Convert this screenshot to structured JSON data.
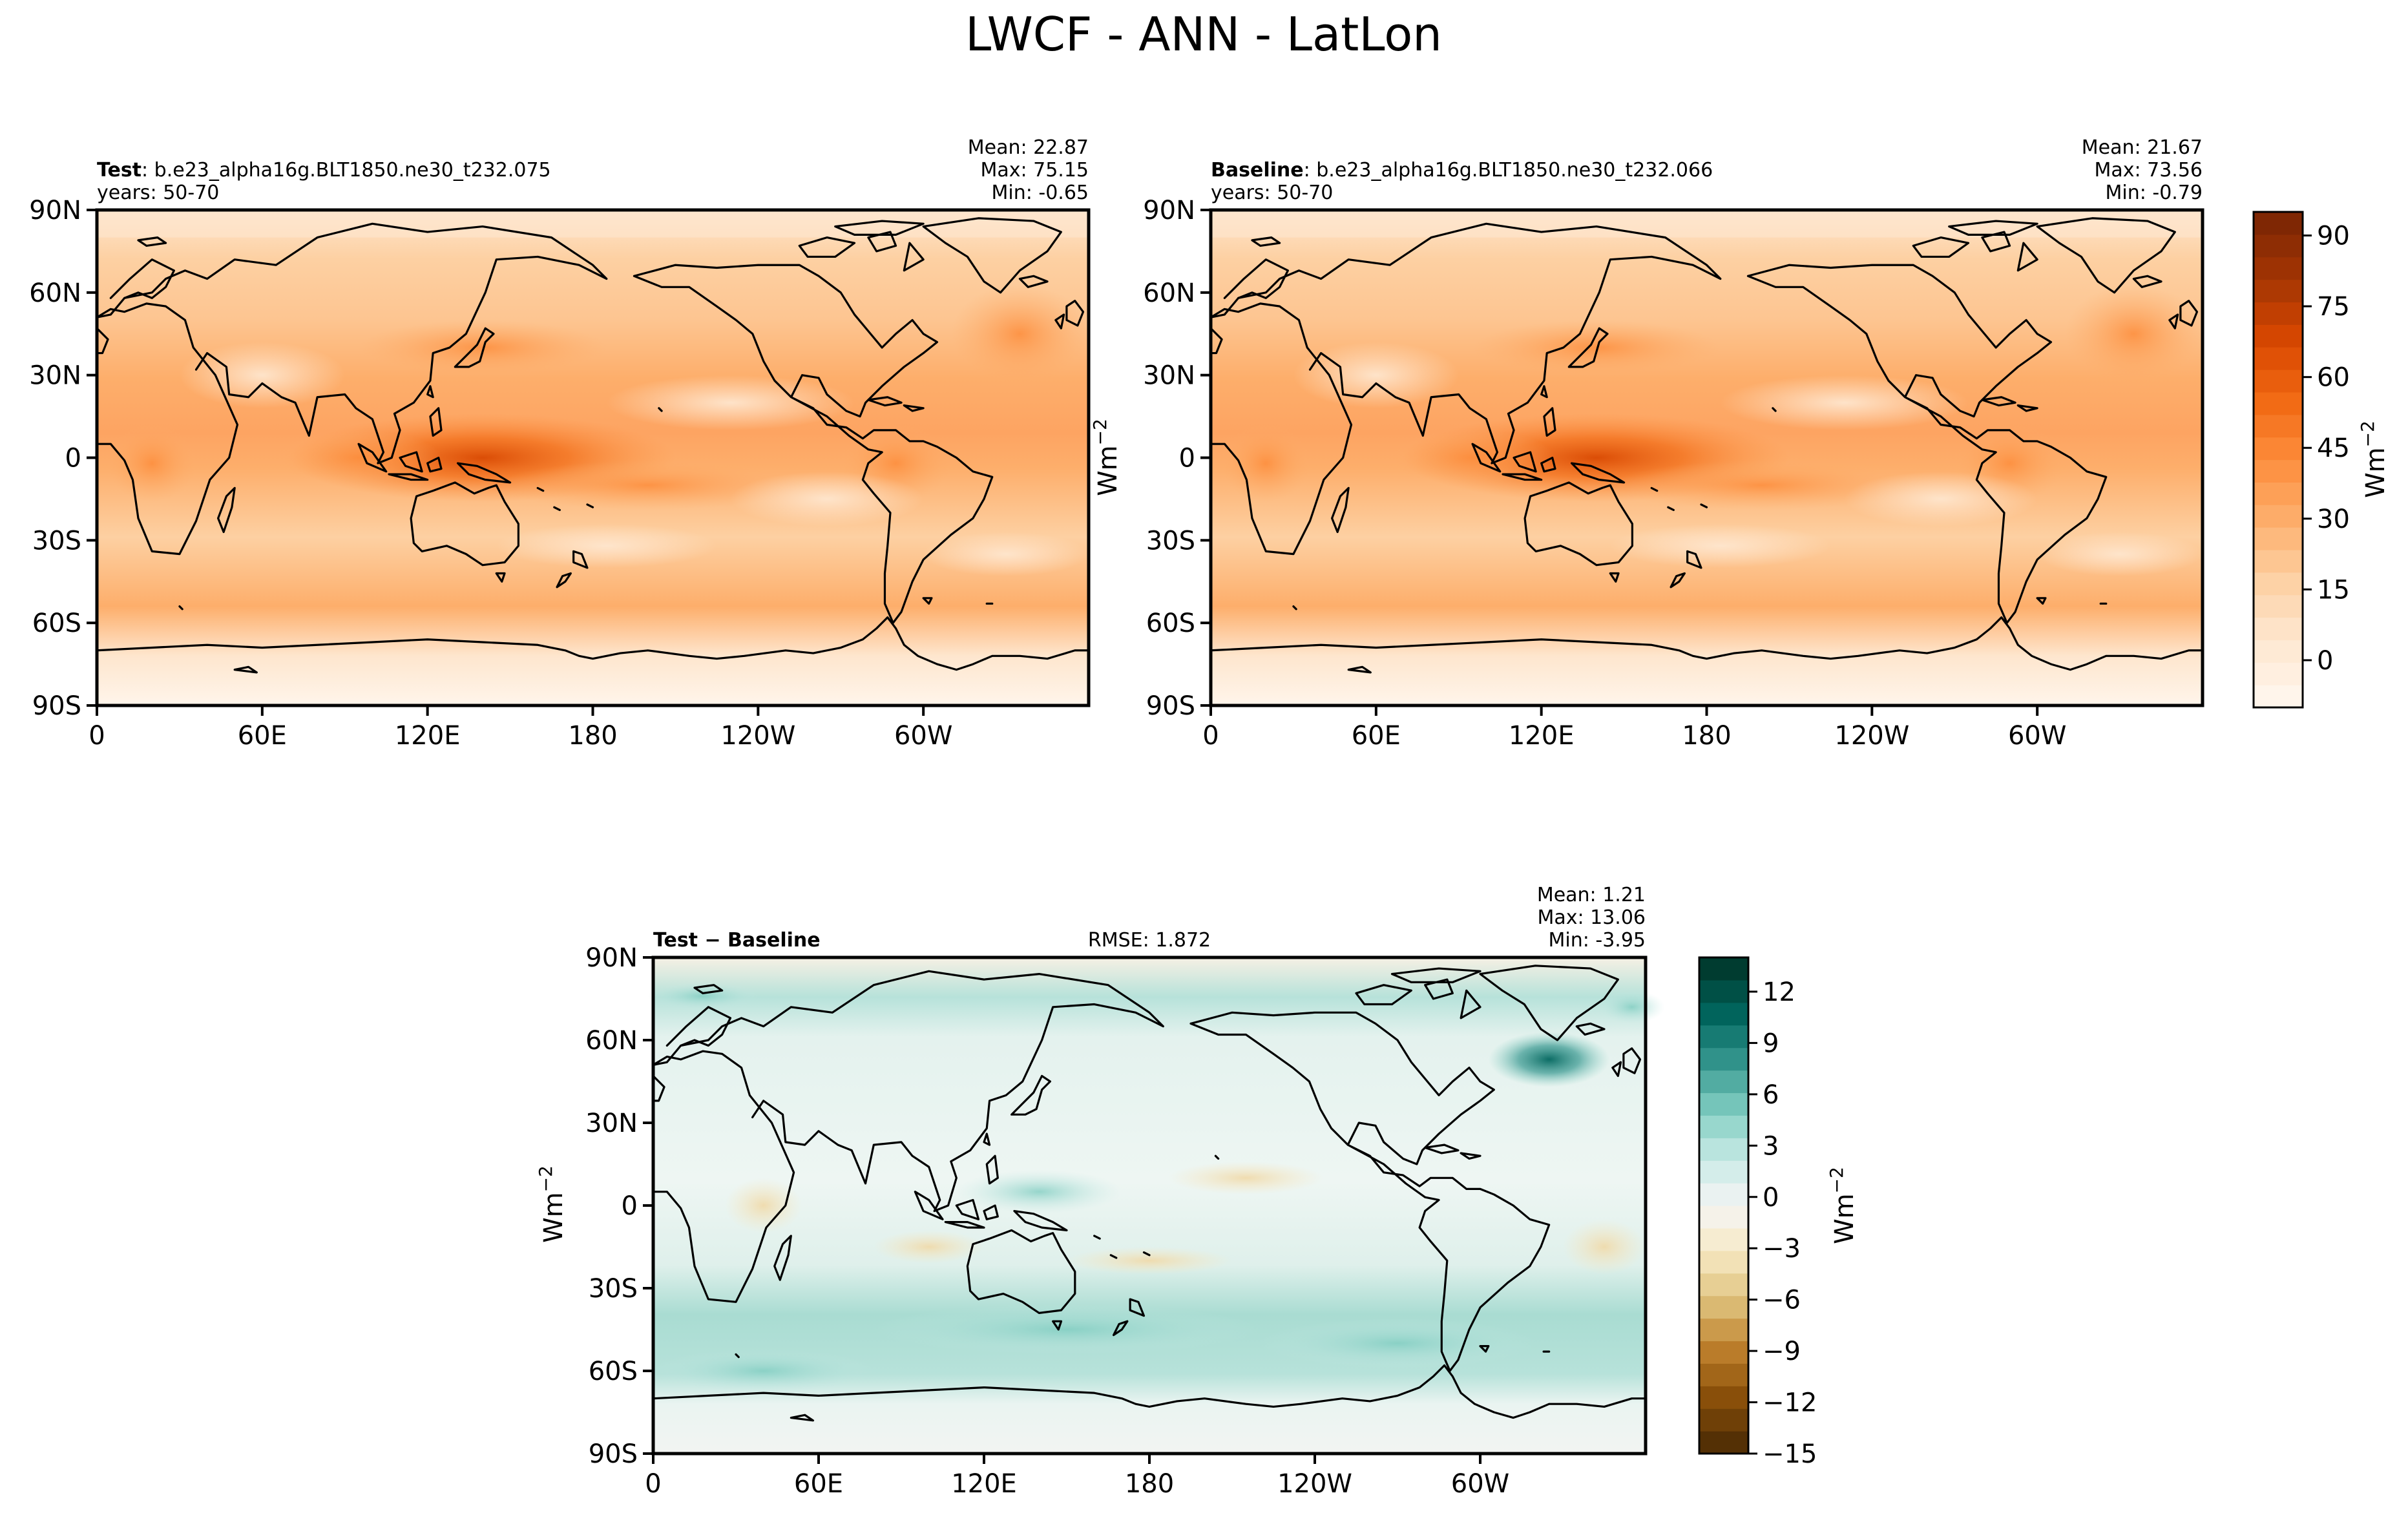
{
  "figure": {
    "title": "LWCF - ANN - LatLon"
  },
  "panels": [
    {
      "id": "test",
      "label": "Test",
      "separator": ": ",
      "case": "b.e23_alpha16g.BLT1850.ne30_t232.075",
      "years": "years: 50-70",
      "stats": {
        "mean": "Mean: 22.87",
        "max": "Max: 75.15",
        "min": "Min: -0.65"
      }
    },
    {
      "id": "baseline",
      "label": "Baseline",
      "separator": ": ",
      "case": "b.e23_alpha16g.BLT1850.ne30_t232.066",
      "years": "years: 50-70",
      "stats": {
        "mean": "Mean: 21.67",
        "max": "Max: 73.56",
        "min": "Min: -0.79"
      }
    },
    {
      "id": "diff",
      "label": "Test − Baseline",
      "rmse": "RMSE: 1.872",
      "stats": {
        "mean": "Mean:  1.21",
        "max": "Max: 13.06",
        "min": "Min: -3.95"
      }
    }
  ],
  "units_label": "Wm",
  "units_exponent": "−2",
  "chart_data": [
    {
      "type": "heatmap",
      "panel": "test",
      "variable": "LWCF",
      "x_ticks": [
        "0",
        "60E",
        "120E",
        "180",
        "120W",
        "60W"
      ],
      "x_tick_values": [
        0,
        60,
        120,
        180,
        240,
        300
      ],
      "xlim": [
        0,
        360
      ],
      "y_ticks": [
        "90N",
        "60N",
        "30N",
        "0",
        "30S",
        "60S",
        "90S"
      ],
      "y_tick_values": [
        90,
        60,
        30,
        0,
        -30,
        -60,
        -90
      ],
      "ylim": [
        -90,
        90
      ],
      "colorbar": {
        "cmap": "Oranges",
        "vmin": -10,
        "vmax": 95,
        "ticks": [
          0,
          15,
          30,
          45,
          60,
          75,
          90
        ],
        "tick_labels": [
          "0",
          "15",
          "30",
          "45",
          "60",
          "75",
          "90"
        ],
        "colors": [
          "#fff5eb",
          "#fee6ce",
          "#fdd0a2",
          "#fdae6b",
          "#fd8d3c",
          "#f16913",
          "#d94801",
          "#a63603",
          "#7f2704"
        ]
      },
      "annotations": [
        "Mean: 22.87",
        "Max: 75.15",
        "Min: -0.65"
      ]
    },
    {
      "type": "heatmap",
      "panel": "baseline",
      "variable": "LWCF",
      "x_ticks": [
        "0",
        "60E",
        "120E",
        "180",
        "120W",
        "60W"
      ],
      "x_tick_values": [
        0,
        60,
        120,
        180,
        240,
        300
      ],
      "xlim": [
        0,
        360
      ],
      "y_ticks": [
        "90N",
        "60N",
        "30N",
        "0",
        "30S",
        "60S",
        "90S"
      ],
      "y_tick_values": [
        90,
        60,
        30,
        0,
        -30,
        -60,
        -90
      ],
      "ylim": [
        -90,
        90
      ],
      "colorbar": {
        "cmap": "Oranges",
        "vmin": -10,
        "vmax": 95,
        "ticks": [
          0,
          15,
          30,
          45,
          60,
          75,
          90
        ],
        "tick_labels": [
          "0",
          "15",
          "30",
          "45",
          "60",
          "75",
          "90"
        ],
        "colors": [
          "#fff5eb",
          "#fee6ce",
          "#fdd0a2",
          "#fdae6b",
          "#fd8d3c",
          "#f16913",
          "#d94801",
          "#a63603",
          "#7f2704"
        ]
      },
      "annotations": [
        "Mean: 21.67",
        "Max: 73.56",
        "Min: -0.79"
      ]
    },
    {
      "type": "heatmap",
      "panel": "diff",
      "variable": "LWCF difference",
      "x_ticks": [
        "0",
        "60E",
        "120E",
        "180",
        "120W",
        "60W"
      ],
      "x_tick_values": [
        0,
        60,
        120,
        180,
        240,
        300
      ],
      "xlim": [
        0,
        360
      ],
      "y_ticks": [
        "90N",
        "60N",
        "30N",
        "0",
        "30S",
        "60S",
        "90S"
      ],
      "y_tick_values": [
        90,
        60,
        30,
        0,
        -30,
        -60,
        -90
      ],
      "ylim": [
        -90,
        90
      ],
      "colorbar": {
        "cmap": "BrBG",
        "vmin": -15,
        "vmax": 14,
        "ticks": [
          12,
          9,
          6,
          3,
          0,
          -3,
          -6,
          -9,
          -12,
          -15
        ],
        "tick_labels": [
          "12",
          "9",
          "6",
          "3",
          "0",
          "−3",
          "−6",
          "−9",
          "−12",
          "−15"
        ],
        "colors": [
          "#543005",
          "#8c510a",
          "#bf812d",
          "#dfc27d",
          "#f6e8c3",
          "#f5f5f5",
          "#c7eae5",
          "#80cdc1",
          "#35978f",
          "#01665e",
          "#003c30"
        ]
      },
      "annotations": [
        "Mean:  1.21",
        "Max: 13.06",
        "Min: -3.95",
        "RMSE: 1.872"
      ]
    }
  ]
}
